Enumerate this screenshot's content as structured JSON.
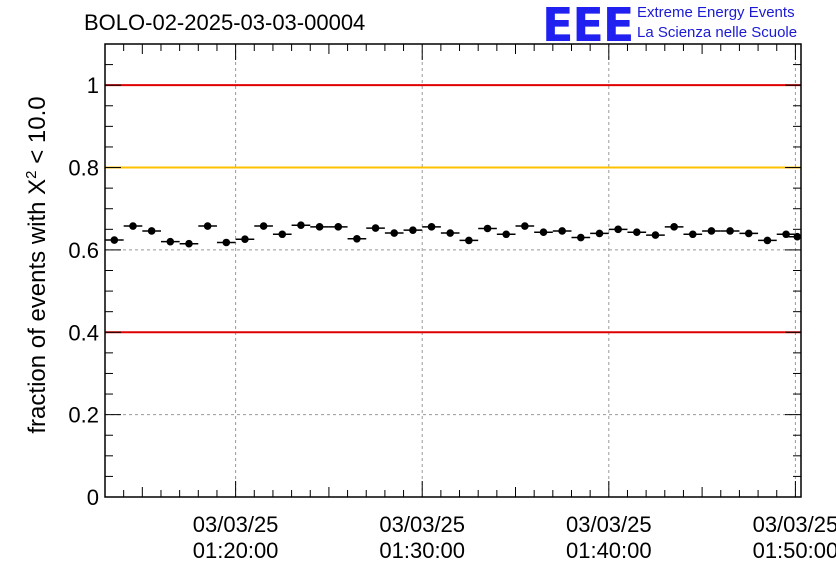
{
  "chart_data": {
    "type": "scatter",
    "title": "BOLO-02-2025-03-03-00004",
    "ylabel_main": "fraction of events with ",
    "ylabel_chi": "X",
    "ylabel_exp": "2",
    "ylabel_tail": " < 10.0",
    "xlabel": "",
    "ylim": [
      0,
      1.1
    ],
    "xlim_minutes": [
      13.0,
      50.3
    ],
    "yticks": [
      0,
      0.2,
      0.4,
      0.6,
      0.8,
      1
    ],
    "ytick_labels": [
      "0",
      "0.2",
      "0.4",
      "0.6",
      "0.8",
      "1"
    ],
    "xticks_minutes": [
      20,
      30,
      40,
      50
    ],
    "xtick_labels_date": [
      "03/03/25",
      "03/03/25",
      "03/03/25",
      "03/03/25"
    ],
    "xtick_labels_time": [
      "01:20:00",
      "01:30:00",
      "01:40:00",
      "01:50:00"
    ],
    "grid": true,
    "reference_lines": [
      {
        "y": 1.0,
        "color": "#e00000"
      },
      {
        "y": 0.8,
        "color": "#ffc000"
      },
      {
        "y": 0.4,
        "color": "#e00000"
      }
    ],
    "series": [
      {
        "marker_color": "#000000",
        "x_minutes": [
          13.5,
          14.5,
          15.5,
          16.5,
          17.5,
          18.5,
          19.5,
          20.5,
          21.5,
          22.5,
          23.5,
          24.5,
          25.5,
          26.5,
          27.5,
          28.5,
          29.5,
          30.5,
          31.5,
          32.5,
          33.5,
          34.5,
          35.5,
          36.5,
          37.5,
          38.5,
          39.5,
          40.5,
          41.5,
          42.5,
          43.5,
          44.5,
          45.5,
          46.5,
          47.5,
          48.5,
          49.5,
          50.1
        ],
        "y": [
          0.624,
          0.658,
          0.646,
          0.62,
          0.615,
          0.658,
          0.618,
          0.626,
          0.658,
          0.638,
          0.66,
          0.656,
          0.656,
          0.627,
          0.653,
          0.641,
          0.648,
          0.656,
          0.641,
          0.623,
          0.652,
          0.638,
          0.658,
          0.643,
          0.646,
          0.63,
          0.64,
          0.65,
          0.643,
          0.636,
          0.656,
          0.638,
          0.646,
          0.646,
          0.64,
          0.623,
          0.638,
          0.632
        ],
        "xerr_minutes": 0.5,
        "yerr": 0.008
      }
    ]
  },
  "logo": {
    "mark": "EEE",
    "line1": "Extreme Energy Events",
    "line2": "La Scienza nelle Scuole",
    "color": "#2020f0"
  }
}
